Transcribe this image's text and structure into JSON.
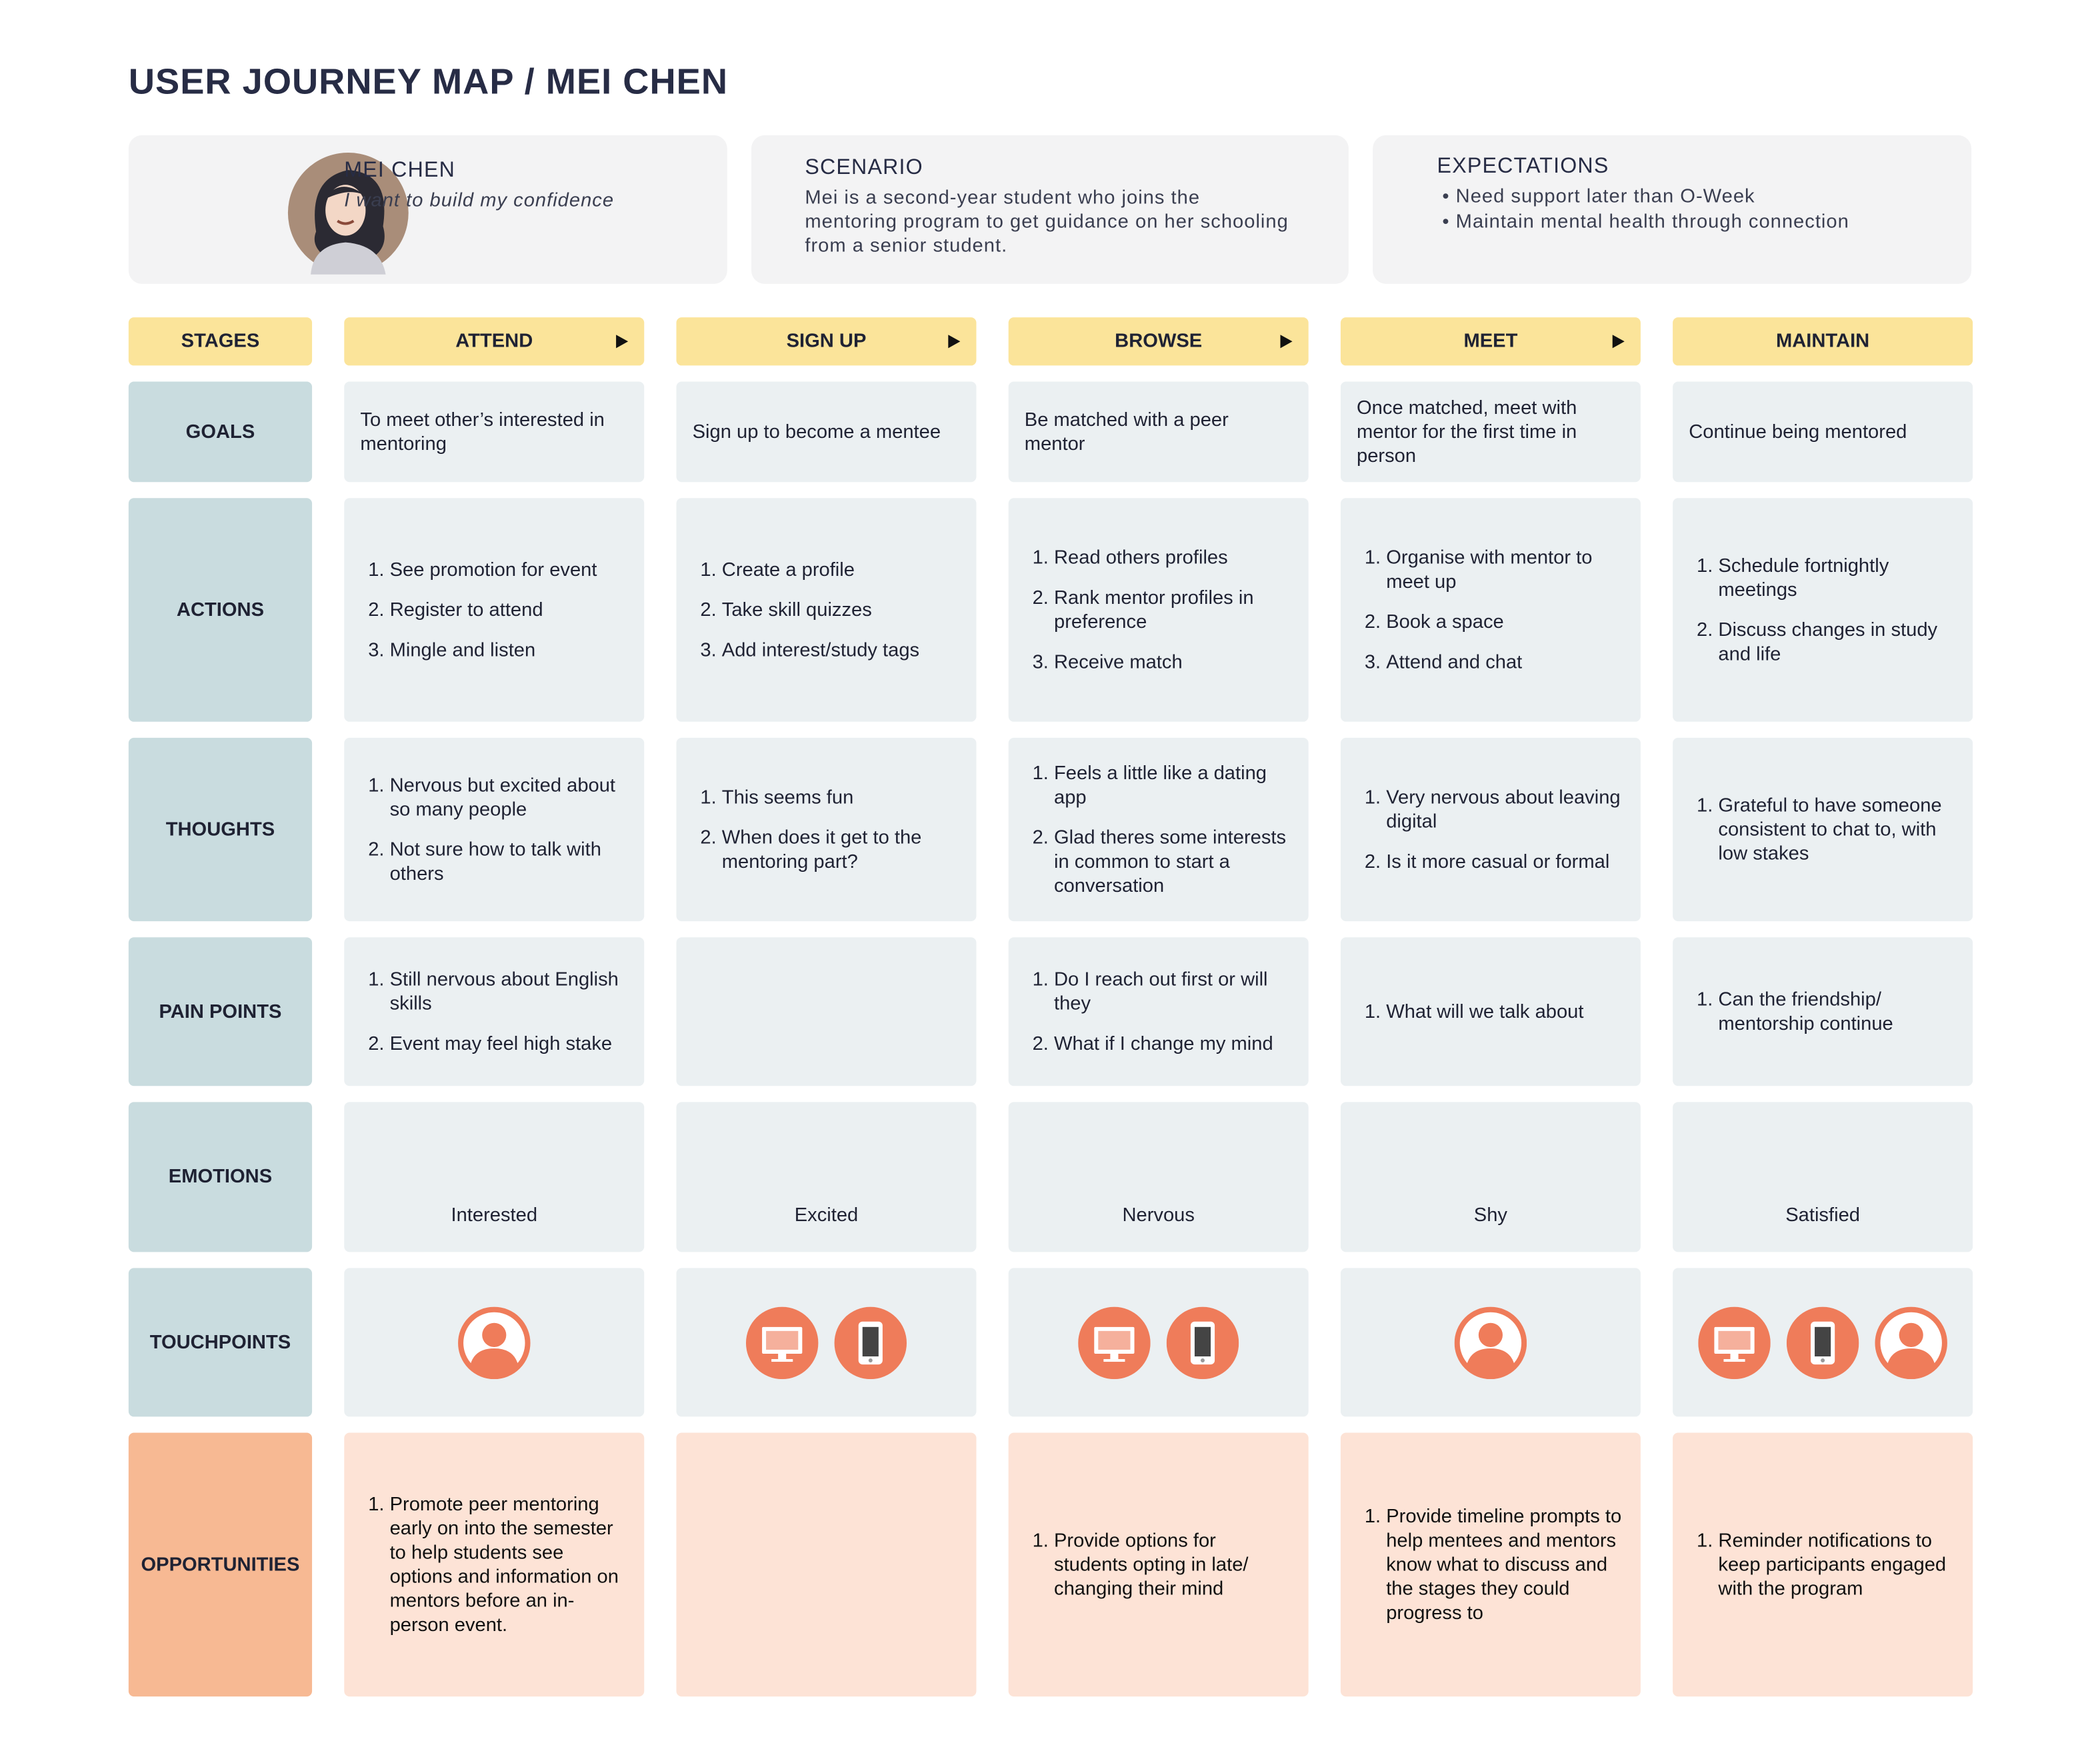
{
  "title": "USER JOURNEY MAP / MEI CHEN",
  "persona": {
    "name": "MEI CHEN",
    "quote": "I want to build my confidence"
  },
  "scenario": {
    "heading": "SCENARIO",
    "text": "Mei is a second-year student who joins the mentoring program to get guidance on her schooling from a senior student."
  },
  "expectations": {
    "heading": "EXPECTATIONS",
    "items": [
      "Need support later than O-Week",
      "Maintain mental health through connection"
    ]
  },
  "stages": {
    "label": "STAGES",
    "items": [
      "ATTEND",
      "SIGN UP",
      "BROWSE",
      "MEET",
      "MAINTAIN"
    ]
  },
  "rows": [
    {
      "label": "GOALS",
      "cells": [
        "To meet other’s interested in mentoring",
        "Sign up to become a mentee",
        "Be matched with a peer mentor",
        "Once matched, meet with mentor for the first time in person",
        "Continue being mentored"
      ]
    },
    {
      "label": "ACTIONS",
      "cells": [
        [
          "See promotion for event",
          "Register to attend",
          "Mingle and listen"
        ],
        [
          "Create a profile",
          "Take skill quizzes",
          "Add interest/study tags"
        ],
        [
          "Read others profiles",
          "Rank mentor profiles in preference",
          "Receive match"
        ],
        [
          "Organise with mentor to meet up",
          "Book a space",
          "Attend and chat"
        ],
        [
          "Schedule fortnightly meetings",
          "Discuss changes in study and life"
        ]
      ]
    },
    {
      "label": "THOUGHTS",
      "cells": [
        [
          "Nervous but excited about so many people",
          "Not sure how to talk with others"
        ],
        [
          "This seems fun",
          "When does it get to the mentoring part?"
        ],
        [
          "Feels a little like a dating app",
          "Glad theres some interests in common to start a conversation"
        ],
        [
          "Very nervous about leaving digital",
          "Is it more casual or formal"
        ],
        [
          "Grateful to have someone consistent to chat to, with low stakes"
        ]
      ]
    },
    {
      "label": "PAIN POINTS",
      "cells": [
        [
          "Still nervous about English skills",
          "Event may feel high stake"
        ],
        [],
        [
          "Do I reach out first or will they",
          "What if I change my mind"
        ],
        [
          "What will we talk about"
        ],
        [
          "Can the friendship/ mentorship continue"
        ]
      ]
    },
    {
      "label": "EMOTIONS",
      "cells": [
        "Interested",
        "Excited",
        "Nervous",
        "Shy",
        "Satisfied"
      ]
    },
    {
      "label": "TOUCHPOINTS"
    },
    {
      "label": "OPPORTUNITIES",
      "cells": [
        [
          "Promote peer mentoring early on into the semester to help students see options and information on mentors before an in-person event."
        ],
        [],
        [
          "Provide options for students opting in late/ changing their mind"
        ],
        [
          "Provide timeline prompts to help mentees and mentors know what to discuss and the stages they could progress to"
        ],
        [
          "Reminder notifications to keep participants engaged with the program"
        ]
      ]
    }
  ]
}
